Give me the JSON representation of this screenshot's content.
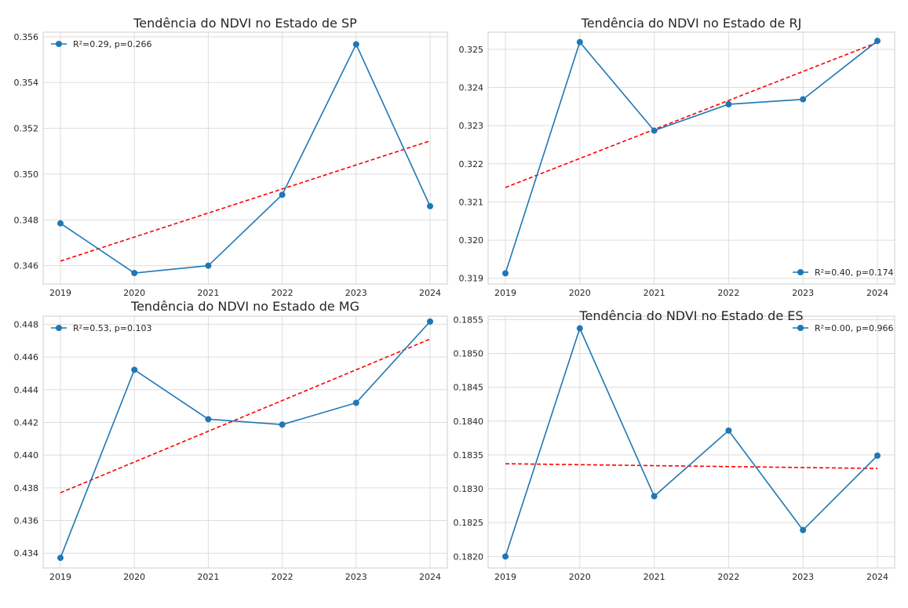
{
  "figure": {
    "background": "#ffffff",
    "grid_color": "#dddddd",
    "series_color": "#1f77b4",
    "trend_color": "#ff0000"
  },
  "chart_data": [
    {
      "type": "line",
      "title": "Tendência do NDVI no Estado de SP",
      "x": [
        2019,
        2020,
        2021,
        2022,
        2023,
        2024
      ],
      "x_ticks": [
        "2019",
        "2020",
        "2021",
        "2022",
        "2023",
        "2024"
      ],
      "series": [
        {
          "values": [
            0.34785,
            0.34568,
            0.346,
            0.3491,
            0.35567,
            0.3486
          ]
        }
      ],
      "trend": {
        "start": 0.3462,
        "end": 0.35145,
        "style": "dashed"
      },
      "legend": {
        "label": "R²=0.29, p=0.266",
        "position": "upper-left"
      },
      "ylim": [
        0.3452,
        0.3562
      ],
      "y_ticks": [
        "0.346",
        "0.348",
        "0.350",
        "0.352",
        "0.354",
        "0.356"
      ],
      "y_tick_values": [
        0.346,
        0.348,
        0.35,
        0.352,
        0.354,
        0.356
      ],
      "grid": true
    },
    {
      "type": "line",
      "title": "Tendência do NDVI no Estado de RJ",
      "x": [
        2019,
        2020,
        2021,
        2022,
        2023,
        2024
      ],
      "x_ticks": [
        "2019",
        "2020",
        "2021",
        "2022",
        "2023",
        "2024"
      ],
      "series": [
        {
          "values": [
            0.31913,
            0.32519,
            0.32287,
            0.32356,
            0.32369,
            0.32522
          ]
        }
      ],
      "trend": {
        "start": 0.32138,
        "end": 0.32518,
        "style": "dashed"
      },
      "legend": {
        "label": "R²=0.40, p=0.174",
        "position": "lower-right"
      },
      "ylim": [
        0.31885,
        0.32545
      ],
      "y_ticks": [
        "0.319",
        "0.320",
        "0.321",
        "0.322",
        "0.323",
        "0.324",
        "0.325"
      ],
      "y_tick_values": [
        0.319,
        0.32,
        0.321,
        0.322,
        0.323,
        0.324,
        0.325
      ],
      "grid": true
    },
    {
      "type": "line",
      "title": "Tendência do NDVI no Estado de MG",
      "x": [
        2019,
        2020,
        2021,
        2022,
        2023,
        2024
      ],
      "x_ticks": [
        "2019",
        "2020",
        "2021",
        "2022",
        "2023",
        "2024"
      ],
      "series": [
        {
          "values": [
            0.43372,
            0.44522,
            0.4422,
            0.44187,
            0.4432,
            0.44817
          ]
        }
      ],
      "trend": {
        "start": 0.4377,
        "end": 0.4471,
        "style": "dashed"
      },
      "legend": {
        "label": "R²=0.53, p=0.103",
        "position": "upper-left"
      },
      "ylim": [
        0.4331,
        0.4485
      ],
      "y_ticks": [
        "0.434",
        "0.436",
        "0.438",
        "0.440",
        "0.442",
        "0.444",
        "0.446",
        "0.448"
      ],
      "y_tick_values": [
        0.434,
        0.436,
        0.438,
        0.44,
        0.442,
        0.444,
        0.446,
        0.448
      ],
      "grid": true
    },
    {
      "type": "line",
      "title": "Tendência do NDVI no Estado de ES",
      "x": [
        2019,
        2020,
        2021,
        2022,
        2023,
        2024
      ],
      "x_ticks": [
        "2019",
        "2020",
        "2021",
        "2022",
        "2023",
        "2024"
      ],
      "series": [
        {
          "values": [
            0.182,
            0.18537,
            0.18289,
            0.18386,
            0.18239,
            0.18349
          ]
        }
      ],
      "trend": {
        "start": 0.18337,
        "end": 0.1833,
        "style": "dashed"
      },
      "legend": {
        "label": "R²=0.00, p=0.966",
        "position": "upper-right"
      },
      "ylim": [
        0.18183,
        0.18555
      ],
      "y_ticks": [
        "0.1820",
        "0.1825",
        "0.1830",
        "0.1835",
        "0.1840",
        "0.1845",
        "0.1850",
        "0.1855"
      ],
      "y_tick_values": [
        0.182,
        0.1825,
        0.183,
        0.1835,
        0.184,
        0.1845,
        0.185,
        0.1855
      ],
      "grid": true
    }
  ]
}
